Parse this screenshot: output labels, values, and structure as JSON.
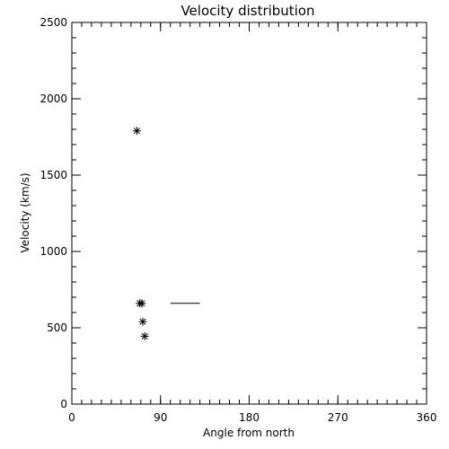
{
  "chart_data": {
    "type": "scatter",
    "title": "Velocity distribution",
    "xlabel": "Angle from north",
    "ylabel": "Velocity (km/s)",
    "xlim": [
      0,
      360
    ],
    "ylim": [
      0,
      2500
    ],
    "x_ticks": [
      0,
      90,
      180,
      270,
      360
    ],
    "x_tick_labels": [
      "0",
      "90",
      "180",
      "270",
      "360"
    ],
    "y_ticks": [
      0,
      500,
      1000,
      1500,
      2000,
      2500
    ],
    "y_tick_labels": [
      "0",
      "500",
      "1000",
      "1500",
      "2000",
      "2500"
    ],
    "x_minor_step": 10,
    "y_minor_step": 100,
    "grid": false,
    "marker": "asterisk",
    "points": [
      {
        "x": 66,
        "y": 1790
      },
      {
        "x": 69,
        "y": 660
      },
      {
        "x": 71,
        "y": 660
      },
      {
        "x": 72,
        "y": 540
      },
      {
        "x": 74,
        "y": 445
      }
    ],
    "segments": [
      {
        "x1": 100,
        "x2": 130,
        "y": 660
      }
    ]
  }
}
